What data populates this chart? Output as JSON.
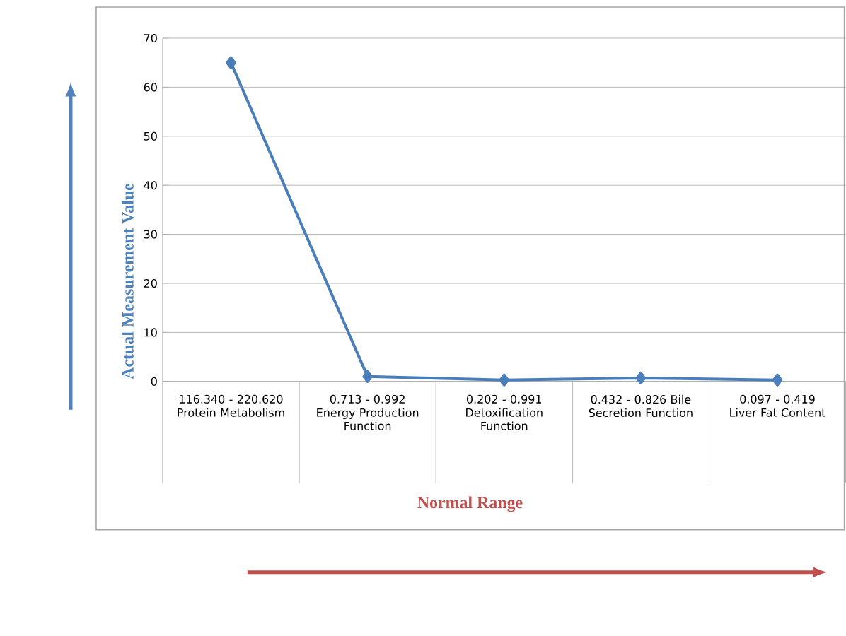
{
  "chart_data": {
    "type": "line",
    "categories": [
      "116.340 - 220.620 Protein Metabolism",
      "0.713 - 0.992 Energy Production Function",
      "0.202 - 0.991 Detoxification Function",
      "0.432 - 0.826 Bile Secretion Function",
      "0.097 - 0.419 Liver Fat Content"
    ],
    "series": [
      {
        "color": "#4a7ebb",
        "values": [
          65,
          1.0,
          0.3,
          0.7,
          0.3
        ]
      }
    ],
    "ylim": [
      0,
      70
    ],
    "yticks": [
      0,
      10,
      20,
      30,
      40,
      50,
      60,
      70
    ],
    "grid": "y",
    "marker": "diamond",
    "xlabel": "Normal Range",
    "ylabel": "Actual Measurement Value"
  }
}
